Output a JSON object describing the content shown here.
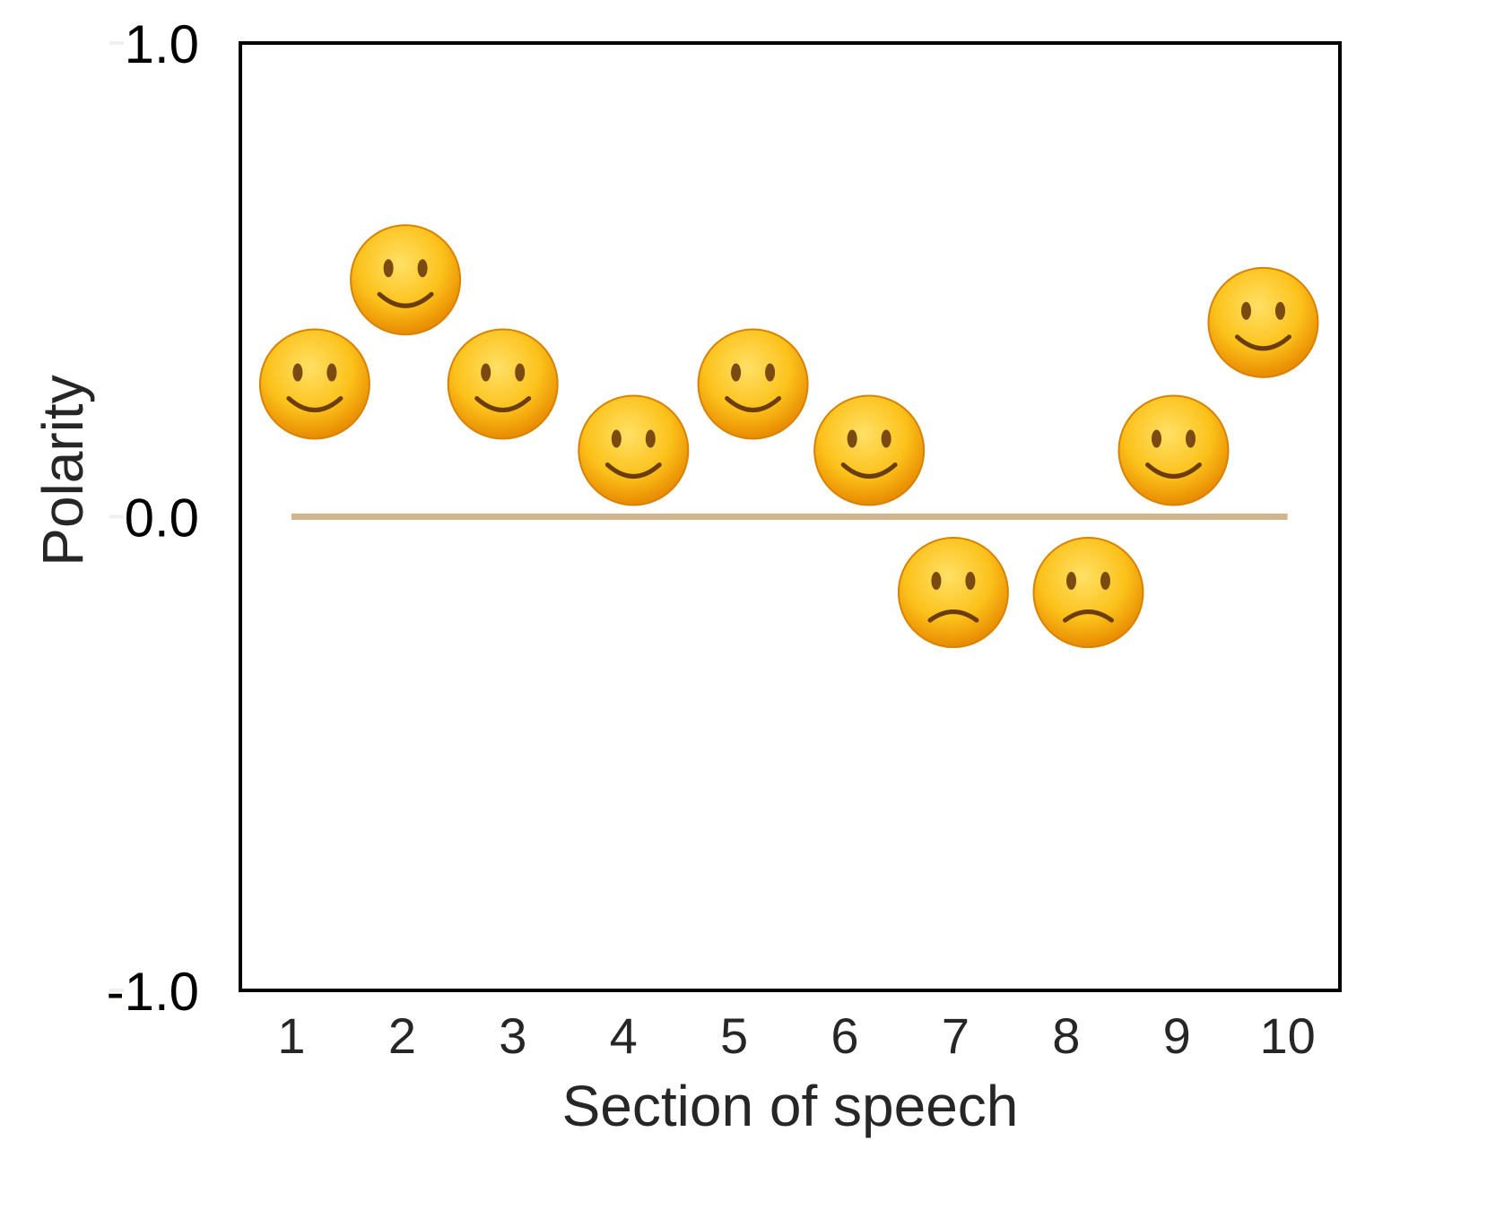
{
  "chart_data": {
    "type": "scatter",
    "title": "",
    "xlabel": "Section of speech",
    "ylabel": "Polarity",
    "xlim": [
      0.63,
      10.6
    ],
    "ylim": [
      -1.0,
      1.0
    ],
    "x_ticks": [
      "1",
      "2",
      "3",
      "4",
      "5",
      "6",
      "7",
      "8",
      "9",
      "10"
    ],
    "y_ticks": [
      "-1.0",
      "0.0",
      "1.0"
    ],
    "grid": false,
    "marker": "emoji faces (smiling for positive, frowning for negative)",
    "reference_line": {
      "y": 0.0,
      "from_x": 1,
      "to_x": 10,
      "color": "#d2b48c"
    },
    "points": [
      {
        "x": 1.21,
        "y": 0.28,
        "face": "smile"
      },
      {
        "x": 2.03,
        "y": 0.5,
        "face": "smile"
      },
      {
        "x": 2.91,
        "y": 0.28,
        "face": "smile"
      },
      {
        "x": 4.09,
        "y": 0.14,
        "face": "smile"
      },
      {
        "x": 5.17,
        "y": 0.28,
        "face": "smile"
      },
      {
        "x": 6.22,
        "y": 0.14,
        "face": "smile"
      },
      {
        "x": 6.98,
        "y": -0.16,
        "face": "frown"
      },
      {
        "x": 8.2,
        "y": -0.16,
        "face": "frown"
      },
      {
        "x": 8.97,
        "y": 0.14,
        "face": "smile"
      },
      {
        "x": 9.78,
        "y": 0.41,
        "face": "smile"
      }
    ],
    "colors": {
      "axis": "#000000",
      "tick_label_x": "#262626",
      "face": "#f7b500"
    }
  }
}
